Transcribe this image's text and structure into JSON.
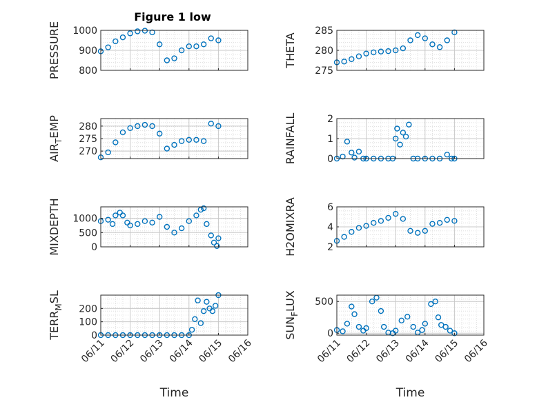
{
  "figure_title": "Figure 1 low",
  "chart_data": [
    {
      "type": "scatter",
      "ylabel": "PRESSURE",
      "title": "Figure 1 low",
      "xlabel": "",
      "xlim": [
        0,
        5
      ],
      "ylim": [
        800,
        1000
      ],
      "yticks": [
        800,
        900,
        1000
      ],
      "xticks": [
        0,
        1,
        2,
        3,
        4,
        5
      ],
      "xticklabels": [],
      "grid": true,
      "minor_grid": true,
      "marker": "circle-open",
      "color": "#0072BD",
      "series": [
        {
          "x": [
            0,
            0.25,
            0.5,
            0.75,
            1,
            1.25,
            1.5,
            1.75,
            2,
            2.25,
            2.5,
            2.75,
            3,
            3.25,
            3.5,
            3.75,
            4
          ],
          "y": [
            895,
            915,
            945,
            965,
            985,
            995,
            998,
            990,
            930,
            850,
            860,
            900,
            920,
            920,
            930,
            960,
            950
          ]
        }
      ]
    },
    {
      "type": "scatter",
      "ylabel": "THETA",
      "xlabel": "",
      "xlim": [
        0,
        5
      ],
      "ylim": [
        275,
        285
      ],
      "yticks": [
        275,
        280,
        285
      ],
      "xticks": [
        0,
        1,
        2,
        3,
        4,
        5
      ],
      "xticklabels": [],
      "grid": true,
      "minor_grid": true,
      "marker": "circle-open",
      "color": "#0072BD",
      "series": [
        {
          "x": [
            0,
            0.25,
            0.5,
            0.75,
            1,
            1.25,
            1.5,
            1.75,
            2,
            2.25,
            2.5,
            2.75,
            3,
            3.25,
            3.5,
            3.75,
            4
          ],
          "y": [
            277,
            277.2,
            277.8,
            278.5,
            279.2,
            279.5,
            279.7,
            279.8,
            280.0,
            280.5,
            282.5,
            283.8,
            283.0,
            281.5,
            280.8,
            282.5,
            284.5
          ]
        }
      ]
    },
    {
      "type": "scatter",
      "ylabel": "AIR_TEMP",
      "xlabel": "",
      "xlim": [
        0,
        5
      ],
      "ylim": [
        267,
        283
      ],
      "yticks": [
        270,
        275,
        280
      ],
      "xticks": [
        0,
        1,
        2,
        3,
        4,
        5
      ],
      "xticklabels": [],
      "grid": true,
      "minor_grid": true,
      "marker": "circle-open",
      "color": "#0072BD",
      "series": [
        {
          "x": [
            0,
            0.25,
            0.5,
            0.75,
            1,
            1.25,
            1.5,
            1.75,
            2,
            2.25,
            2.5,
            2.75,
            3,
            3.25,
            3.5,
            3.75,
            4
          ],
          "y": [
            267.5,
            269.5,
            273.5,
            277.5,
            279.2,
            280,
            280.5,
            280,
            277,
            271,
            272.5,
            274,
            274.5,
            274.5,
            274,
            281,
            280
          ]
        }
      ]
    },
    {
      "type": "scatter",
      "ylabel": "RAINFALL",
      "xlabel": "",
      "xlim": [
        0,
        5
      ],
      "ylim": [
        0,
        2
      ],
      "yticks": [
        0,
        1,
        2
      ],
      "xticks": [
        0,
        1,
        2,
        3,
        4,
        5
      ],
      "xticklabels": [],
      "grid": true,
      "minor_grid": true,
      "marker": "circle-open",
      "color": "#0072BD",
      "series": [
        {
          "x": [
            0,
            0.2,
            0.35,
            0.5,
            0.6,
            0.75,
            0.9,
            1.0,
            1.25,
            1.5,
            1.75,
            1.9,
            2.0,
            2.05,
            2.15,
            2.25,
            2.35,
            2.45,
            2.6,
            2.75,
            3.0,
            3.25,
            3.5,
            3.75,
            3.9,
            4.0
          ],
          "y": [
            0,
            0.1,
            0.85,
            0.3,
            0.05,
            0.35,
            0.0,
            0.0,
            0.0,
            0.0,
            0.0,
            0.0,
            1.0,
            1.5,
            0.7,
            1.3,
            1.1,
            1.7,
            0.0,
            0.0,
            0.0,
            0.0,
            0.0,
            0.2,
            0.0,
            0.0
          ]
        }
      ]
    },
    {
      "type": "scatter",
      "ylabel": "MIXDEPTH",
      "xlabel": "",
      "xlim": [
        0,
        5
      ],
      "ylim": [
        0,
        1400
      ],
      "yticks": [
        0,
        500,
        1000
      ],
      "xticks": [
        0,
        1,
        2,
        3,
        4,
        5
      ],
      "xticklabels": [],
      "grid": true,
      "minor_grid": true,
      "marker": "circle-open",
      "color": "#0072BD",
      "series": [
        {
          "x": [
            0,
            0.25,
            0.4,
            0.5,
            0.65,
            0.75,
            0.9,
            1.0,
            1.25,
            1.5,
            1.75,
            2.0,
            2.25,
            2.5,
            2.75,
            3.0,
            3.25,
            3.4,
            3.5,
            3.6,
            3.75,
            3.85,
            3.95,
            4.0
          ],
          "y": [
            900,
            950,
            800,
            1100,
            1200,
            1100,
            850,
            750,
            800,
            900,
            850,
            1050,
            700,
            500,
            650,
            900,
            1100,
            1300,
            1350,
            800,
            400,
            150,
            30,
            300
          ]
        }
      ]
    },
    {
      "type": "scatter",
      "ylabel": "H2OMIXRA",
      "xlabel": "",
      "xlim": [
        0,
        5
      ],
      "ylim": [
        2,
        6
      ],
      "yticks": [
        2,
        4,
        6
      ],
      "xticks": [
        0,
        1,
        2,
        3,
        4,
        5
      ],
      "xticklabels": [],
      "grid": true,
      "minor_grid": true,
      "marker": "circle-open",
      "color": "#0072BD",
      "series": [
        {
          "x": [
            0,
            0.25,
            0.5,
            0.75,
            1,
            1.25,
            1.5,
            1.75,
            2,
            2.25,
            2.5,
            2.75,
            3,
            3.25,
            3.5,
            3.75,
            4
          ],
          "y": [
            2.6,
            3.0,
            3.5,
            3.9,
            4.1,
            4.4,
            4.6,
            4.9,
            5.3,
            4.8,
            3.6,
            3.4,
            3.6,
            4.3,
            4.4,
            4.7,
            4.6
          ]
        }
      ]
    },
    {
      "type": "scatter",
      "ylabel": "TERR_MSL",
      "xlabel": "Time",
      "xlim": [
        0,
        5
      ],
      "ylim": [
        0,
        300
      ],
      "yticks": [
        0,
        100,
        200
      ],
      "xticks": [
        0,
        1,
        2,
        3,
        4,
        5
      ],
      "xticklabels": [
        "06/11",
        "06/12",
        "06/13",
        "06/14",
        "06/15",
        "06/16"
      ],
      "grid": true,
      "minor_grid": true,
      "marker": "circle-open",
      "color": "#0072BD",
      "series": [
        {
          "x": [
            0,
            0.25,
            0.5,
            0.75,
            1,
            1.25,
            1.5,
            1.75,
            2,
            2.25,
            2.5,
            2.75,
            3,
            3.1,
            3.2,
            3.3,
            3.4,
            3.5,
            3.6,
            3.7,
            3.8,
            3.9,
            4.0
          ],
          "y": [
            0,
            0,
            0,
            0,
            0,
            0,
            0,
            0,
            0,
            0,
            0,
            0,
            0,
            40,
            120,
            260,
            90,
            180,
            250,
            200,
            180,
            220,
            300
          ]
        }
      ]
    },
    {
      "type": "scatter",
      "ylabel": "SUN_FLUX",
      "xlabel": "Time",
      "xlim": [
        0,
        5
      ],
      "ylim": [
        -30,
        600
      ],
      "yticks": [
        0,
        500
      ],
      "xticks": [
        0,
        1,
        2,
        3,
        4,
        5
      ],
      "xticklabels": [
        "06/11",
        "06/12",
        "06/13",
        "06/14",
        "06/15",
        "06/16"
      ],
      "grid": true,
      "minor_grid": true,
      "marker": "circle-open",
      "color": "#0072BD",
      "series": [
        {
          "x": [
            0,
            0.2,
            0.35,
            0.5,
            0.6,
            0.75,
            0.9,
            1.0,
            1.2,
            1.35,
            1.5,
            1.6,
            1.75,
            1.9,
            2.0,
            2.2,
            2.4,
            2.6,
            2.75,
            2.9,
            3.0,
            3.2,
            3.35,
            3.45,
            3.55,
            3.7,
            3.85,
            4.0
          ],
          "y": [
            50,
            30,
            150,
            420,
            300,
            100,
            40,
            80,
            500,
            560,
            350,
            100,
            10,
            0,
            40,
            200,
            260,
            100,
            10,
            50,
            150,
            460,
            500,
            250,
            130,
            100,
            40,
            0
          ]
        }
      ]
    }
  ]
}
